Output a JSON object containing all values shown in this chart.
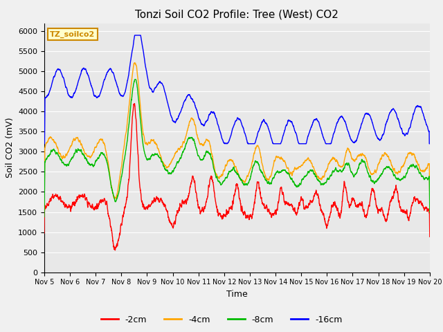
{
  "title": "Tonzi Soil CO2 Profile: Tree (West) CO2",
  "xlabel": "Time",
  "ylabel": "Soil CO2 (mV)",
  "ylim": [
    0,
    6200
  ],
  "yticks": [
    0,
    500,
    1000,
    1500,
    2000,
    2500,
    3000,
    3500,
    4000,
    4500,
    5000,
    5500,
    6000
  ],
  "colors": {
    "2cm": "#ff0000",
    "4cm": "#ffa500",
    "8cm": "#00bb00",
    "16cm": "#0000ff"
  },
  "legend_labels": [
    "-2cm",
    "-4cm",
    "-8cm",
    "-16cm"
  ],
  "legend_colors": [
    "#ff0000",
    "#ffa500",
    "#00bb00",
    "#0000ff"
  ],
  "watermark_text": "TZ_soilco2",
  "watermark_bg": "#ffffcc",
  "watermark_border": "#cc8800",
  "plot_bg": "#e8e8e8",
  "fig_bg": "#f0f0f0",
  "title_fontsize": 11,
  "axis_label_fontsize": 9,
  "tick_fontsize": 8
}
